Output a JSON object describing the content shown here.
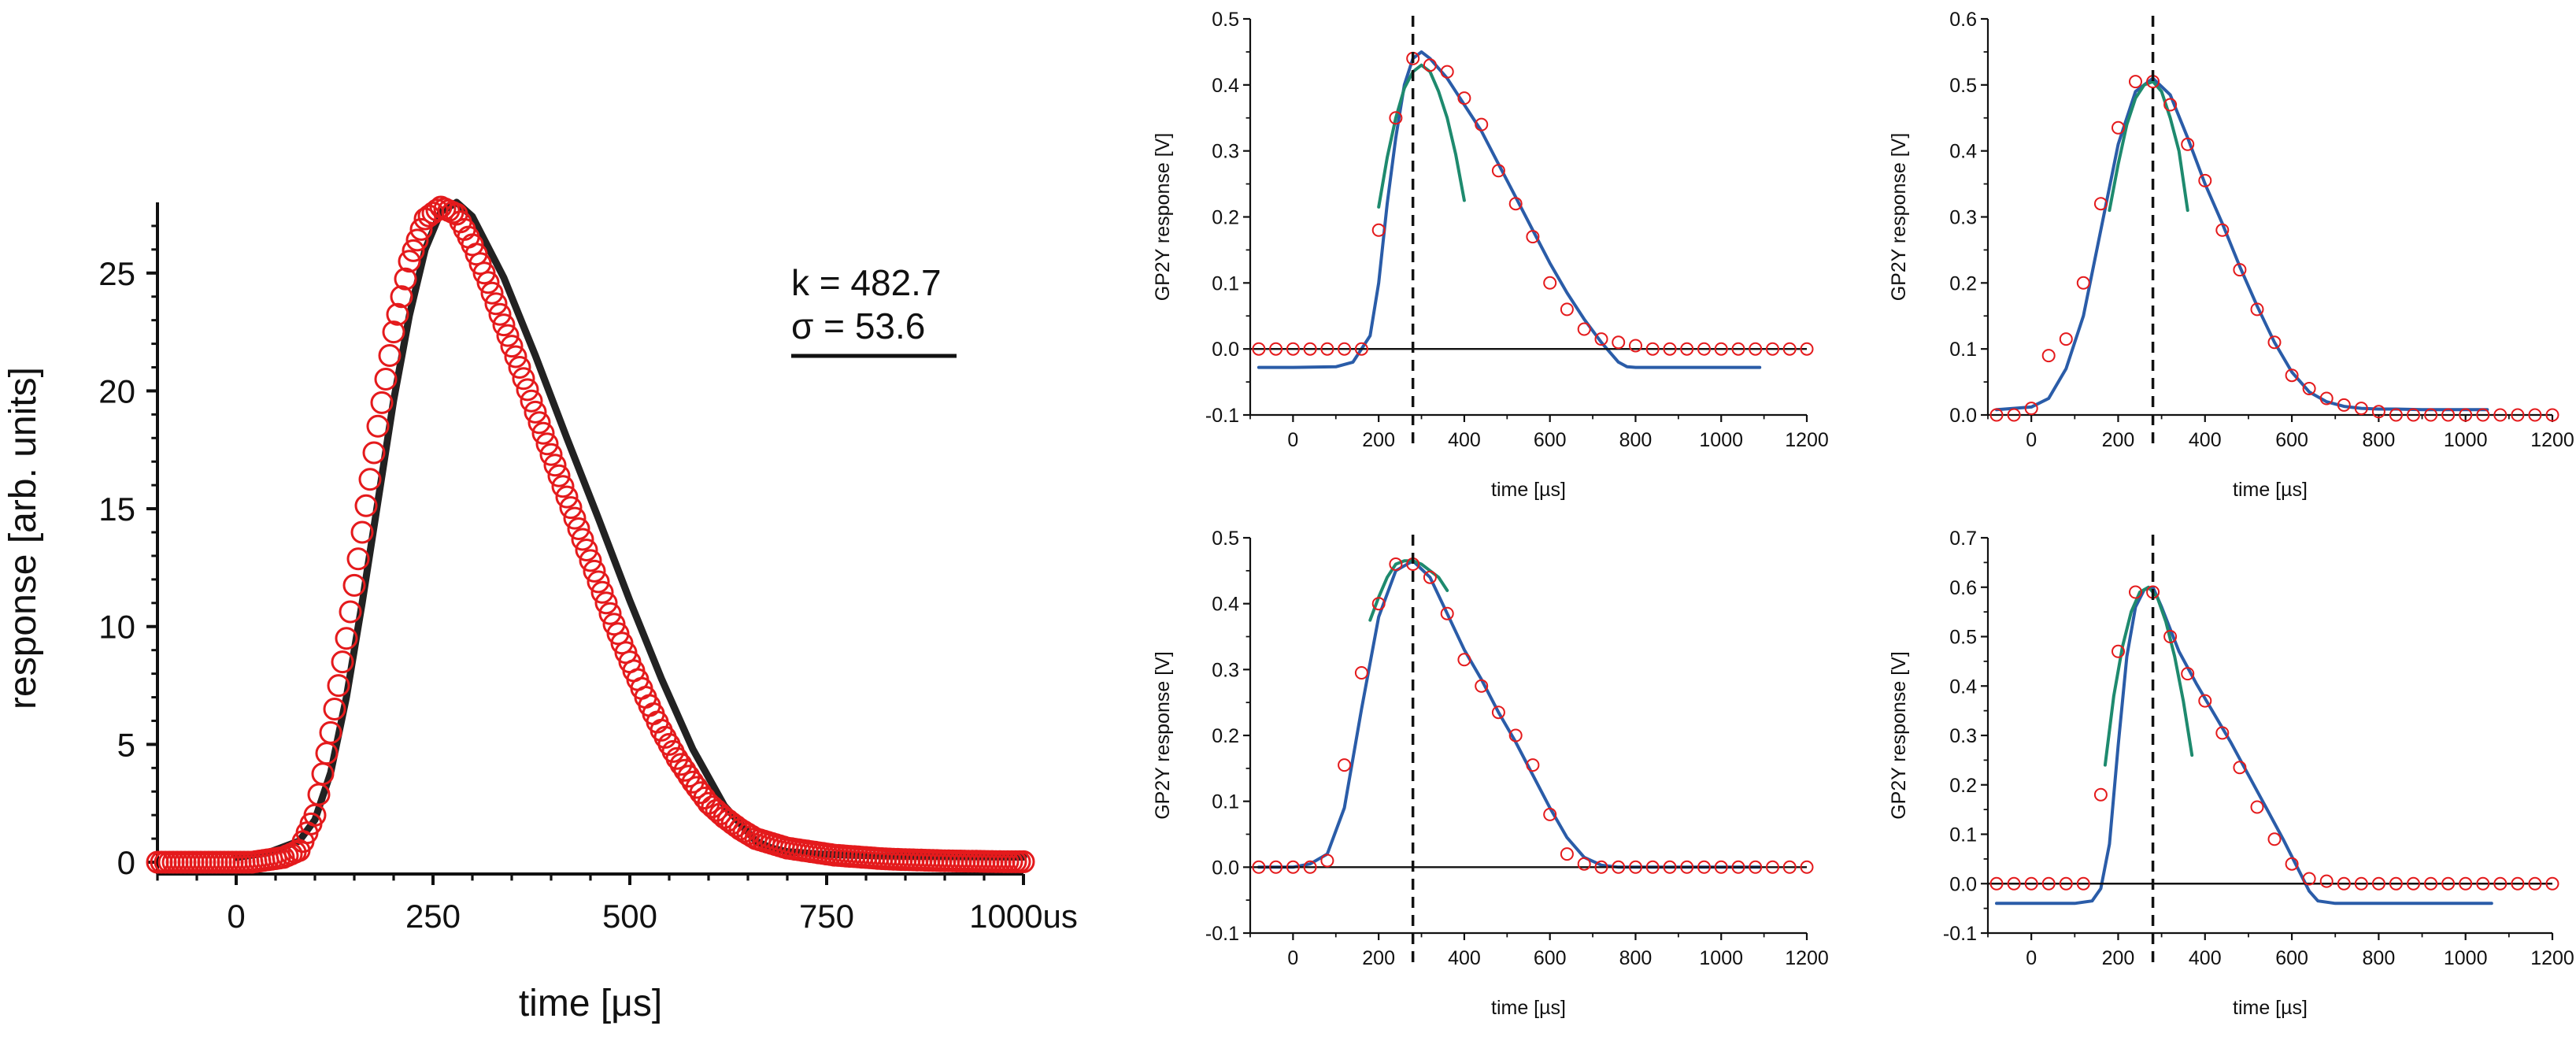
{
  "chart_data": [
    {
      "id": "main",
      "type": "scatter",
      "xlabel": "time [μs]",
      "ylabel": "response [arb. units]",
      "xlim": [
        -100,
        1000
      ],
      "ylim": [
        -0.5,
        28
      ],
      "xticks": [
        0,
        250,
        500,
        750,
        1000
      ],
      "xtick_labels": [
        "0",
        "250",
        "500",
        "750",
        "1000us"
      ],
      "yticks": [
        0,
        5,
        10,
        15,
        20,
        25
      ],
      "ytick_labels": [
        "0",
        "5",
        "10",
        "15",
        "20",
        "25"
      ],
      "annotation": {
        "k_label": "k = 482.7",
        "sigma_label": "σ = 53.6"
      },
      "series": [
        {
          "kind": "markers",
          "marker": "open-circle",
          "color": "#e41a1c",
          "x": [
            -100,
            -80,
            -60,
            -40,
            -20,
            0,
            20,
            40,
            60,
            80,
            100,
            120,
            140,
            160,
            180,
            200,
            220,
            240,
            260,
            280,
            300,
            320,
            340,
            360,
            380,
            400,
            420,
            440,
            460,
            480,
            500,
            520,
            540,
            560,
            580,
            600,
            620,
            640,
            660,
            680,
            700,
            720,
            740,
            760,
            780,
            800,
            820,
            840,
            860,
            880,
            900,
            920,
            940,
            960,
            980,
            1000
          ],
          "y": [
            0,
            0,
            0,
            0,
            0,
            0,
            0,
            0.1,
            0.2,
            0.5,
            2,
            5.5,
            9.5,
            14,
            18.5,
            22.5,
            25.5,
            27.3,
            27.8,
            27.5,
            26.2,
            24.6,
            22.8,
            21,
            19.1,
            17.3,
            15.5,
            13.7,
            11.9,
            10.1,
            8.5,
            7,
            5.6,
            4.4,
            3.4,
            2.5,
            1.9,
            1.4,
            1,
            0.8,
            0.6,
            0.5,
            0.4,
            0.3,
            0.25,
            0.2,
            0.15,
            0.12,
            0.1,
            0.08,
            0.06,
            0.05,
            0.04,
            0.03,
            0.02,
            0.02
          ]
        },
        {
          "kind": "line",
          "color": "#222222",
          "x": [
            0,
            40,
            80,
            100,
            120,
            140,
            160,
            180,
            200,
            220,
            240,
            260,
            280,
            300,
            340,
            380,
            420,
            460,
            500,
            540,
            580,
            620,
            660,
            680,
            700,
            740,
            780,
            820,
            860,
            900,
            950,
            1000
          ],
          "y": [
            0.2,
            0.4,
            0.9,
            1.8,
            3.8,
            7,
            11,
            15.3,
            19.6,
            23.2,
            26,
            27.6,
            28,
            27.4,
            24.8,
            21.5,
            18,
            14.6,
            11.1,
            7.8,
            4.8,
            2.4,
            0.9,
            0.6,
            0.45,
            0.35,
            0.3,
            0.27,
            0.25,
            0.24,
            0.23,
            0.22
          ]
        }
      ]
    },
    {
      "id": "p1",
      "type": "scatter",
      "xlabel": "time [µs]",
      "ylabel": "GP2Y response [V]",
      "xlim": [
        -100,
        1200
      ],
      "ylim": [
        -0.1,
        0.5
      ],
      "xticks": [
        0,
        200,
        400,
        600,
        800,
        1000,
        1200
      ],
      "yticks": [
        -0.1,
        0.0,
        0.1,
        0.2,
        0.3,
        0.4,
        0.5
      ],
      "ytick_labels": [
        "-0.1",
        "0.0",
        "0.1",
        "0.2",
        "0.3",
        "0.4",
        "0.5"
      ],
      "vline_x": 280,
      "series": [
        {
          "kind": "markers",
          "marker": "open-circle",
          "color": "#e41a1c",
          "x": [
            -80,
            -40,
            0,
            40,
            80,
            120,
            160,
            200,
            240,
            280,
            320,
            360,
            400,
            440,
            480,
            520,
            560,
            600,
            640,
            680,
            720,
            760,
            800,
            840,
            880,
            920,
            960,
            1000,
            1040,
            1080,
            1120,
            1160,
            1200
          ],
          "y": [
            0,
            0,
            0,
            0,
            0,
            0,
            0,
            0.18,
            0.35,
            0.44,
            0.43,
            0.42,
            0.38,
            0.34,
            0.27,
            0.22,
            0.17,
            0.1,
            0.06,
            0.03,
            0.015,
            0.01,
            0.005,
            0,
            0,
            0,
            0,
            0,
            0,
            0,
            0,
            0,
            0
          ]
        },
        {
          "kind": "line",
          "color": "#2a5ca8",
          "x": [
            -80,
            0,
            100,
            140,
            180,
            200,
            220,
            240,
            260,
            280,
            300,
            320,
            360,
            400,
            440,
            480,
            520,
            560,
            600,
            640,
            680,
            720,
            760,
            780,
            800,
            840,
            900,
            1000,
            1090
          ],
          "y": [
            -0.028,
            -0.028,
            -0.027,
            -0.02,
            0.02,
            0.1,
            0.22,
            0.32,
            0.4,
            0.44,
            0.45,
            0.44,
            0.41,
            0.37,
            0.33,
            0.28,
            0.23,
            0.18,
            0.13,
            0.085,
            0.045,
            0.01,
            -0.02,
            -0.027,
            -0.028,
            -0.028,
            -0.028,
            -0.028,
            -0.028
          ]
        },
        {
          "kind": "line",
          "color": "#1e8a6e",
          "x": [
            200,
            220,
            240,
            260,
            280,
            300,
            320,
            340,
            360,
            380,
            400
          ],
          "y": [
            0.215,
            0.29,
            0.35,
            0.395,
            0.42,
            0.43,
            0.42,
            0.39,
            0.35,
            0.295,
            0.225
          ]
        },
        {
          "kind": "hline",
          "y": 0,
          "color": "#111111"
        }
      ]
    },
    {
      "id": "p2",
      "type": "scatter",
      "xlabel": "time [µs]",
      "ylabel": "GP2Y response [V]",
      "xlim": [
        -100,
        1200
      ],
      "ylim": [
        0.0,
        0.6
      ],
      "xticks": [
        0,
        200,
        400,
        600,
        800,
        1000,
        1200
      ],
      "yticks": [
        0.0,
        0.1,
        0.2,
        0.3,
        0.4,
        0.5,
        0.6
      ],
      "ytick_labels": [
        "0.0",
        "0.1",
        "0.2",
        "0.3",
        "0.4",
        "0.5",
        "0.6"
      ],
      "vline_x": 280,
      "series": [
        {
          "kind": "markers",
          "marker": "open-circle",
          "color": "#e41a1c",
          "x": [
            -80,
            -40,
            0,
            40,
            80,
            120,
            160,
            200,
            240,
            280,
            320,
            360,
            400,
            440,
            480,
            520,
            560,
            600,
            640,
            680,
            720,
            760,
            800,
            840,
            880,
            920,
            960,
            1000,
            1040,
            1080,
            1120,
            1160,
            1200
          ],
          "y": [
            0,
            0,
            0.01,
            0.09,
            0.115,
            0.2,
            0.32,
            0.435,
            0.505,
            0.505,
            0.47,
            0.41,
            0.355,
            0.28,
            0.22,
            0.16,
            0.11,
            0.06,
            0.04,
            0.025,
            0.015,
            0.01,
            0.005,
            0,
            0,
            0,
            0,
            0,
            0,
            0,
            0,
            0,
            0
          ]
        },
        {
          "kind": "line",
          "color": "#2a5ca8",
          "x": [
            -80,
            0,
            40,
            80,
            120,
            160,
            200,
            240,
            280,
            320,
            360,
            400,
            440,
            480,
            520,
            560,
            600,
            640,
            680,
            720,
            760,
            800,
            840,
            900,
            1000,
            1050
          ],
          "y": [
            0.008,
            0.012,
            0.025,
            0.07,
            0.15,
            0.28,
            0.41,
            0.49,
            0.51,
            0.485,
            0.42,
            0.35,
            0.29,
            0.225,
            0.165,
            0.11,
            0.065,
            0.035,
            0.02,
            0.013,
            0.01,
            0.009,
            0.009,
            0.008,
            0.008,
            0.008
          ]
        },
        {
          "kind": "line",
          "color": "#1e8a6e",
          "x": [
            180,
            200,
            220,
            240,
            260,
            280,
            300,
            320,
            340,
            360
          ],
          "y": [
            0.31,
            0.38,
            0.44,
            0.48,
            0.5,
            0.505,
            0.49,
            0.45,
            0.4,
            0.31
          ]
        }
      ]
    },
    {
      "id": "p3",
      "type": "scatter",
      "xlabel": "time [µs]",
      "ylabel": "GP2Y response [V]",
      "xlim": [
        -100,
        1200
      ],
      "ylim": [
        -0.1,
        0.5
      ],
      "xticks": [
        0,
        200,
        400,
        600,
        800,
        1000,
        1200
      ],
      "yticks": [
        -0.1,
        0.0,
        0.1,
        0.2,
        0.3,
        0.4,
        0.5
      ],
      "ytick_labels": [
        "-0.1",
        "0.0",
        "0.1",
        "0.2",
        "0.3",
        "0.4",
        "0.5"
      ],
      "vline_x": 280,
      "series": [
        {
          "kind": "markers",
          "marker": "open-circle",
          "color": "#e41a1c",
          "x": [
            -80,
            -40,
            0,
            40,
            80,
            120,
            160,
            200,
            240,
            280,
            320,
            360,
            400,
            440,
            480,
            520,
            560,
            600,
            640,
            680,
            720,
            760,
            800,
            840,
            880,
            920,
            960,
            1000,
            1040,
            1080,
            1120,
            1160,
            1200
          ],
          "y": [
            0,
            0,
            0,
            0,
            0.01,
            0.155,
            0.295,
            0.4,
            0.46,
            0.46,
            0.44,
            0.385,
            0.315,
            0.275,
            0.235,
            0.2,
            0.155,
            0.08,
            0.02,
            0.005,
            0,
            0,
            0,
            0,
            0,
            0,
            0,
            0,
            0,
            0,
            0,
            0,
            0
          ]
        },
        {
          "kind": "line",
          "color": "#2a5ca8",
          "x": [
            -80,
            0,
            40,
            80,
            120,
            160,
            200,
            240,
            280,
            320,
            360,
            400,
            440,
            480,
            520,
            560,
            600,
            640,
            680,
            720,
            760,
            800,
            840,
            900,
            1000,
            1090
          ],
          "y": [
            0,
            0,
            0.005,
            0.02,
            0.09,
            0.24,
            0.38,
            0.45,
            0.465,
            0.44,
            0.385,
            0.33,
            0.285,
            0.235,
            0.19,
            0.14,
            0.09,
            0.045,
            0.015,
            0.003,
            0,
            0,
            0,
            0,
            0,
            0
          ]
        },
        {
          "kind": "line",
          "color": "#1e8a6e",
          "x": [
            180,
            200,
            220,
            240,
            260,
            280,
            300,
            320,
            340,
            360
          ],
          "y": [
            0.375,
            0.41,
            0.44,
            0.46,
            0.465,
            0.465,
            0.46,
            0.45,
            0.44,
            0.42
          ]
        },
        {
          "kind": "hline",
          "y": 0,
          "color": "#111111"
        }
      ]
    },
    {
      "id": "p4",
      "type": "scatter",
      "xlabel": "time [µs]",
      "ylabel": "GP2Y response [V]",
      "xlim": [
        -100,
        1200
      ],
      "ylim": [
        -0.1,
        0.7
      ],
      "xticks": [
        0,
        200,
        400,
        600,
        800,
        1000,
        1200
      ],
      "yticks": [
        -0.1,
        0.0,
        0.1,
        0.2,
        0.3,
        0.4,
        0.5,
        0.6,
        0.7
      ],
      "ytick_labels": [
        "-0.1",
        "0.0",
        "0.1",
        "0.2",
        "0.3",
        "0.4",
        "0.5",
        "0.6",
        "0.7"
      ],
      "vline_x": 280,
      "series": [
        {
          "kind": "markers",
          "marker": "open-circle",
          "color": "#e41a1c",
          "x": [
            -80,
            -40,
            0,
            40,
            80,
            120,
            160,
            200,
            240,
            280,
            320,
            360,
            400,
            440,
            480,
            520,
            560,
            600,
            640,
            680,
            720,
            760,
            800,
            840,
            880,
            920,
            960,
            1000,
            1040,
            1080,
            1120,
            1160,
            1200
          ],
          "y": [
            0,
            0,
            0,
            0,
            0,
            0,
            0.18,
            0.47,
            0.59,
            0.59,
            0.5,
            0.425,
            0.37,
            0.305,
            0.235,
            0.155,
            0.09,
            0.04,
            0.01,
            0.005,
            0,
            0,
            0,
            0,
            0,
            0,
            0,
            0,
            0,
            0,
            0,
            0,
            0
          ]
        },
        {
          "kind": "line",
          "color": "#2a5ca8",
          "x": [
            -80,
            0,
            100,
            140,
            160,
            180,
            200,
            220,
            240,
            260,
            280,
            300,
            340,
            380,
            420,
            460,
            500,
            540,
            580,
            620,
            640,
            660,
            700,
            800,
            900,
            1000,
            1060
          ],
          "y": [
            -0.04,
            -0.04,
            -0.04,
            -0.035,
            -0.01,
            0.08,
            0.28,
            0.46,
            0.56,
            0.595,
            0.6,
            0.56,
            0.47,
            0.405,
            0.345,
            0.285,
            0.22,
            0.155,
            0.09,
            0.02,
            -0.015,
            -0.035,
            -0.04,
            -0.04,
            -0.04,
            -0.04,
            -0.04
          ]
        },
        {
          "kind": "line",
          "color": "#1e8a6e",
          "x": [
            170,
            190,
            210,
            230,
            250,
            270,
            290,
            310,
            330,
            350,
            370
          ],
          "y": [
            0.24,
            0.38,
            0.48,
            0.55,
            0.59,
            0.6,
            0.58,
            0.53,
            0.46,
            0.37,
            0.26
          ]
        },
        {
          "kind": "hline",
          "y": 0,
          "color": "#111111"
        }
      ]
    }
  ]
}
